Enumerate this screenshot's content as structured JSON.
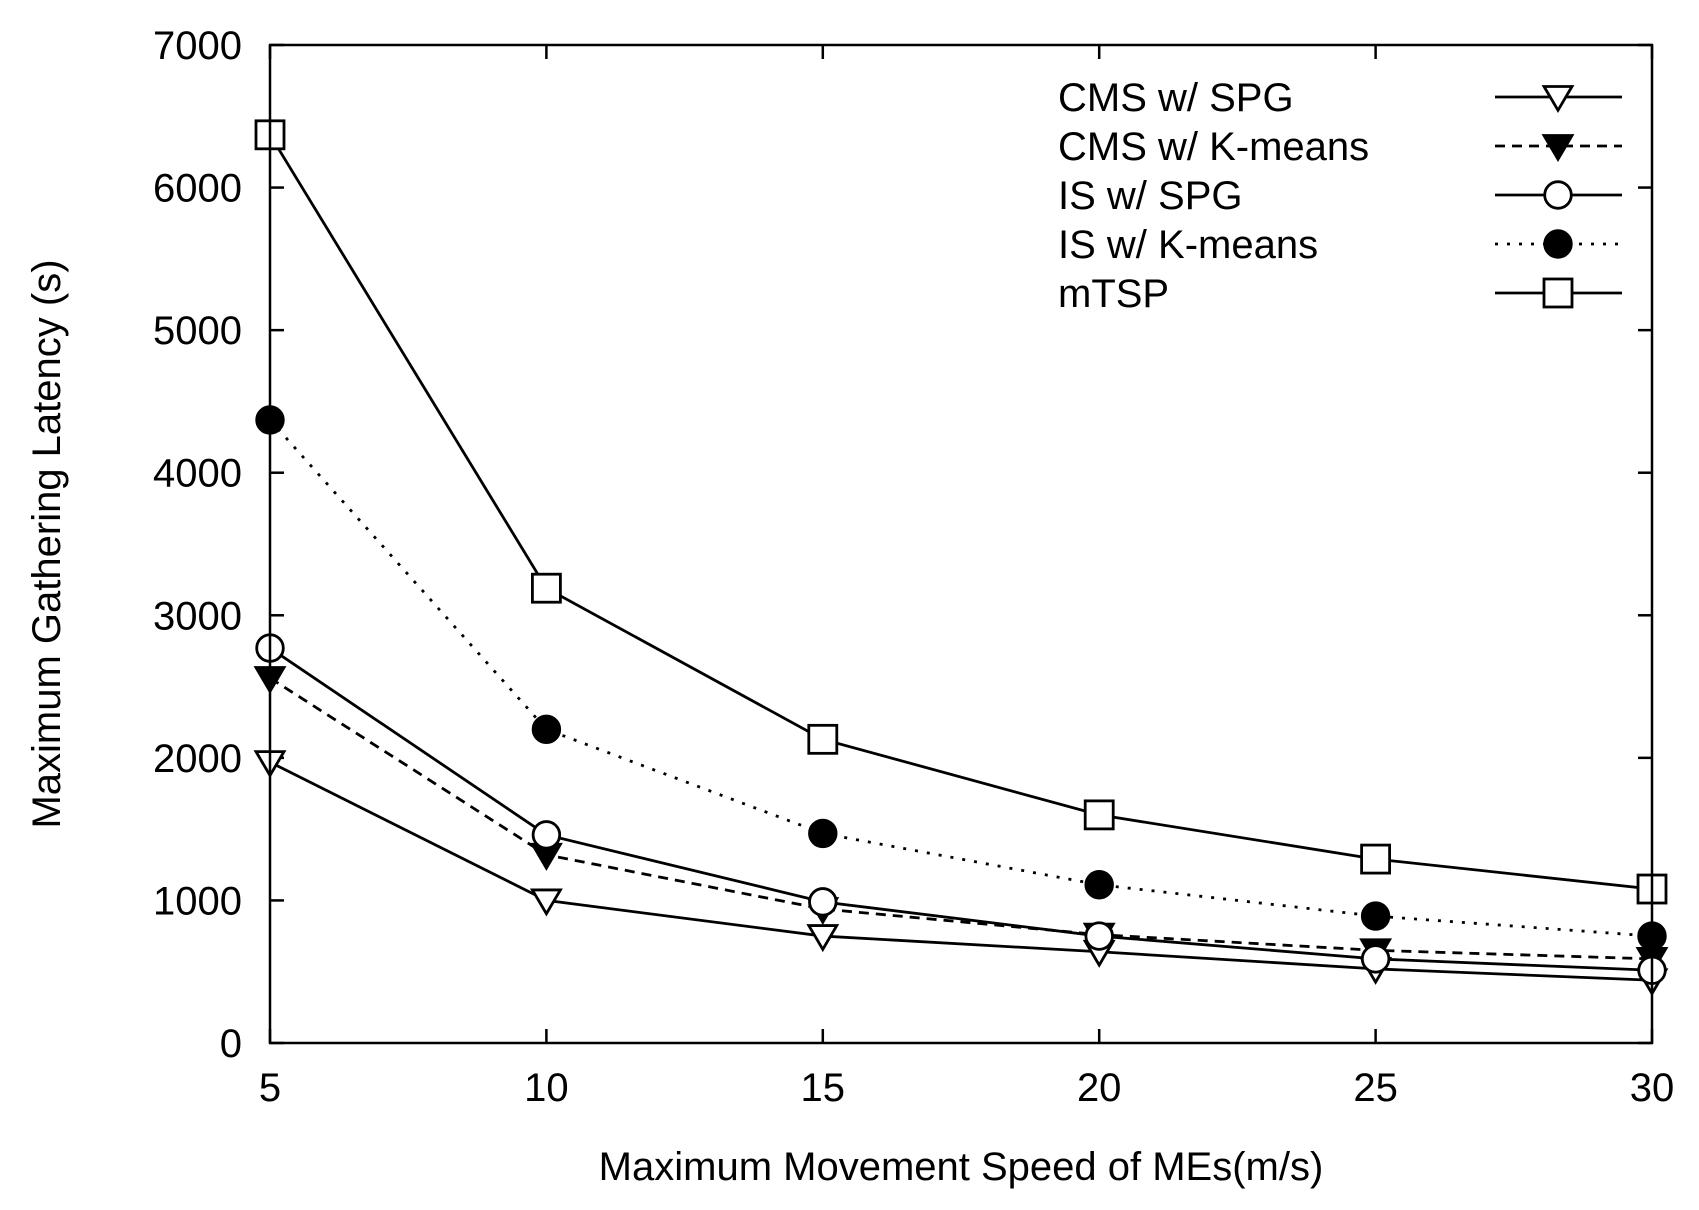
{
  "chart_data": {
    "type": "line",
    "title": "",
    "xlabel": "Maximum Movement Speed of MEs(m/s)",
    "ylabel": "Maximum Gathering Latency (s)",
    "x": [
      5,
      10,
      15,
      20,
      25,
      30
    ],
    "xlim": [
      5,
      30
    ],
    "ylim": [
      0,
      7000
    ],
    "xticks": [
      5,
      10,
      15,
      20,
      25,
      30
    ],
    "yticks": [
      0,
      1000,
      2000,
      3000,
      4000,
      5000,
      6000,
      7000
    ],
    "grid": false,
    "legend_position": "top-right",
    "series": [
      {
        "name": "CMS w/ SPG",
        "values": [
          1970,
          1000,
          750,
          640,
          520,
          440
        ],
        "marker": "triangle-down-open",
        "dash": "solid",
        "color": "#000000"
      },
      {
        "name": "CMS w/ K-means",
        "values": [
          2560,
          1320,
          940,
          760,
          650,
          590
        ],
        "marker": "triangle-down-filled",
        "dash": "dashed",
        "color": "#000000"
      },
      {
        "name": "IS w/ SPG",
        "values": [
          2770,
          1460,
          990,
          750,
          590,
          510
        ],
        "marker": "circle-open",
        "dash": "solid",
        "color": "#000000"
      },
      {
        "name": "IS w/ K-means",
        "values": [
          4370,
          2200,
          1470,
          1110,
          890,
          750
        ],
        "marker": "circle-filled",
        "dash": "dotted",
        "color": "#000000"
      },
      {
        "name": "mTSP",
        "values": [
          6370,
          3190,
          2130,
          1600,
          1290,
          1080
        ],
        "marker": "square-open",
        "dash": "solid",
        "color": "#000000"
      }
    ]
  }
}
